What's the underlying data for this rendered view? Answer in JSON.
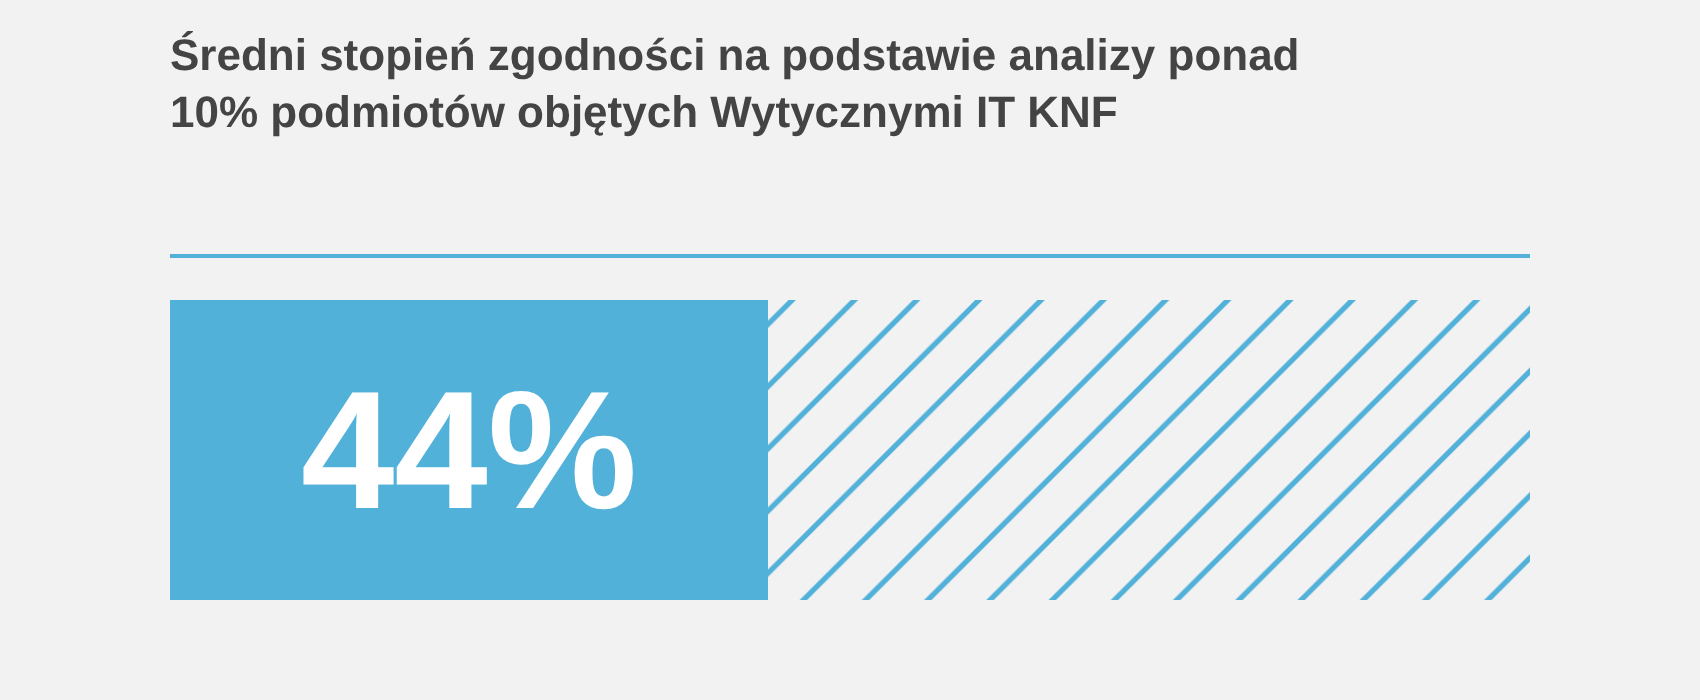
{
  "chart_data": {
    "type": "bar",
    "title": "Średni stopień zgodności na podstawie analizy ponad\n10% podmiotów objętych Wytycznymi IT KNF",
    "orientation": "horizontal",
    "stacked": true,
    "categories": [
      null
    ],
    "xlim": [
      0,
      100
    ],
    "series": [
      {
        "color": "#52b1d9",
        "values": [
          44
        ],
        "value_labels": [
          "44%"
        ]
      },
      {
        "color": "#52b1d9",
        "values": [
          56
        ],
        "value_labels": [
          null
        ]
      }
    ]
  }
}
